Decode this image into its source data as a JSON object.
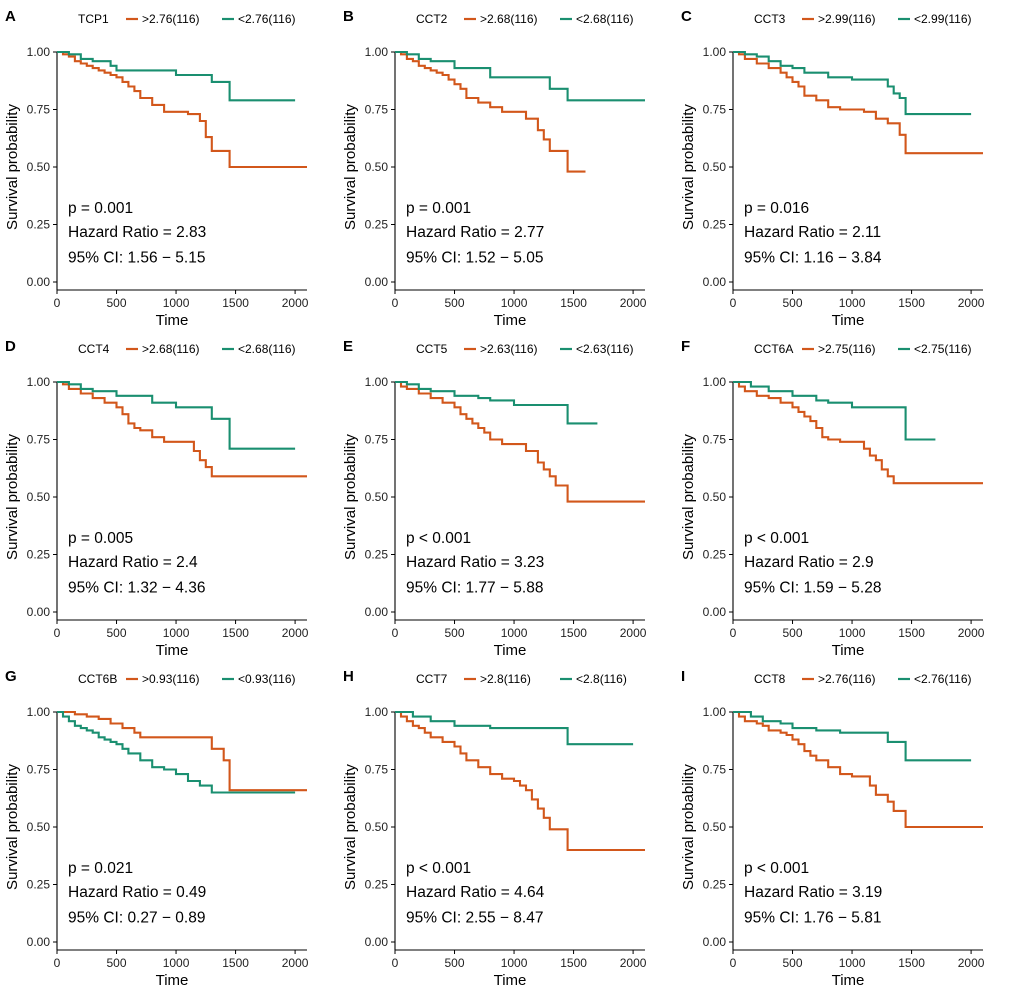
{
  "figure": {
    "series_colors": {
      "high": "#D2571B",
      "low": "#1A8F70"
    },
    "common": {
      "xlabel": "Time",
      "ylabel": "Survival probability",
      "x_ticks": [
        0,
        500,
        1000,
        1500,
        2000
      ],
      "y_ticks": [
        "0.00",
        "0.25",
        "0.50",
        "0.75",
        "1.00"
      ],
      "xlim": [
        0,
        2100
      ],
      "ylim": [
        0,
        1
      ]
    }
  },
  "chart_data": [
    {
      "panel": "A",
      "type": "line",
      "gene": "TCP1",
      "title": "",
      "xlabel": "Time",
      "ylabel": "Survival probability",
      "legend": {
        "high": ">2.76(116)",
        "low": "<2.76(116)"
      },
      "stats": {
        "p": "p = 0.001",
        "hr": "Hazard Ratio = 2.83",
        "ci": "95% CI: 1.56 − 5.15"
      },
      "series": [
        {
          "name": ">2.76(116)",
          "key": "high",
          "x": [
            0,
            50,
            100,
            150,
            200,
            250,
            300,
            350,
            400,
            450,
            500,
            550,
            600,
            650,
            700,
            800,
            900,
            1000,
            1100,
            1200,
            1250,
            1300,
            1350,
            1450,
            2100
          ],
          "y": [
            1.0,
            0.99,
            0.98,
            0.96,
            0.95,
            0.94,
            0.93,
            0.92,
            0.91,
            0.9,
            0.89,
            0.87,
            0.85,
            0.83,
            0.8,
            0.77,
            0.74,
            0.74,
            0.73,
            0.7,
            0.63,
            0.57,
            0.57,
            0.5,
            0.5
          ]
        },
        {
          "name": "<2.76(116)",
          "key": "low",
          "x": [
            0,
            100,
            200,
            300,
            450,
            500,
            800,
            1000,
            1300,
            1450,
            2000
          ],
          "y": [
            1.0,
            0.99,
            0.97,
            0.96,
            0.94,
            0.92,
            0.92,
            0.9,
            0.87,
            0.79,
            0.79
          ]
        }
      ]
    },
    {
      "panel": "B",
      "type": "line",
      "gene": "CCT2",
      "title": "",
      "xlabel": "Time",
      "ylabel": "Survival probability",
      "legend": {
        "high": ">2.68(116)",
        "low": "<2.68(116)"
      },
      "stats": {
        "p": "p = 0.001",
        "hr": "Hazard Ratio = 2.77",
        "ci": "95% CI: 1.52 − 5.05"
      },
      "series": [
        {
          "name": ">2.68(116)",
          "key": "high",
          "x": [
            0,
            50,
            100,
            150,
            200,
            250,
            300,
            350,
            400,
            450,
            500,
            550,
            600,
            700,
            800,
            900,
            1000,
            1100,
            1200,
            1250,
            1300,
            1350,
            1450,
            1600
          ],
          "y": [
            1.0,
            0.99,
            0.97,
            0.96,
            0.94,
            0.93,
            0.92,
            0.91,
            0.9,
            0.88,
            0.86,
            0.84,
            0.8,
            0.78,
            0.76,
            0.74,
            0.74,
            0.71,
            0.66,
            0.62,
            0.57,
            0.57,
            0.48,
            0.48
          ]
        },
        {
          "name": "<2.68(116)",
          "key": "low",
          "x": [
            0,
            100,
            200,
            300,
            500,
            800,
            1000,
            1200,
            1300,
            1450,
            2100
          ],
          "y": [
            1.0,
            0.99,
            0.97,
            0.96,
            0.93,
            0.89,
            0.89,
            0.89,
            0.84,
            0.79,
            0.79
          ]
        }
      ]
    },
    {
      "panel": "C",
      "type": "line",
      "gene": "CCT3",
      "title": "",
      "xlabel": "Time",
      "ylabel": "Survival probability",
      "legend": {
        "high": ">2.99(116)",
        "low": "<2.99(116)"
      },
      "stats": {
        "p": "p = 0.016",
        "hr": "Hazard Ratio = 2.11",
        "ci": "95% CI: 1.16 − 3.84"
      },
      "series": [
        {
          "name": ">2.99(116)",
          "key": "high",
          "x": [
            0,
            50,
            100,
            200,
            300,
            400,
            450,
            500,
            550,
            600,
            700,
            800,
            900,
            1000,
            1100,
            1200,
            1300,
            1400,
            1450,
            2100
          ],
          "y": [
            1.0,
            0.99,
            0.97,
            0.95,
            0.93,
            0.91,
            0.89,
            0.87,
            0.85,
            0.81,
            0.79,
            0.76,
            0.75,
            0.75,
            0.74,
            0.71,
            0.69,
            0.64,
            0.56,
            0.56
          ]
        },
        {
          "name": "<2.99(116)",
          "key": "low",
          "x": [
            0,
            100,
            200,
            300,
            400,
            500,
            600,
            800,
            1000,
            1300,
            1350,
            1400,
            1450,
            2000
          ],
          "y": [
            1.0,
            0.99,
            0.98,
            0.96,
            0.94,
            0.93,
            0.91,
            0.89,
            0.88,
            0.85,
            0.82,
            0.8,
            0.73,
            0.73
          ]
        }
      ]
    },
    {
      "panel": "D",
      "type": "line",
      "gene": "CCT4",
      "title": "",
      "xlabel": "Time",
      "ylabel": "Survival probability",
      "legend": {
        "high": ">2.68(116)",
        "low": "<2.68(116)"
      },
      "stats": {
        "p": "p = 0.005",
        "hr": "Hazard Ratio = 2.4",
        "ci": "95% CI: 1.32 − 4.36"
      },
      "series": [
        {
          "name": ">2.68(116)",
          "key": "high",
          "x": [
            0,
            50,
            100,
            200,
            300,
            400,
            500,
            550,
            600,
            650,
            700,
            800,
            900,
            1000,
            1100,
            1150,
            1200,
            1250,
            1300,
            1350,
            2100
          ],
          "y": [
            1.0,
            0.99,
            0.97,
            0.95,
            0.93,
            0.91,
            0.89,
            0.86,
            0.82,
            0.8,
            0.79,
            0.76,
            0.74,
            0.74,
            0.74,
            0.7,
            0.66,
            0.63,
            0.59,
            0.59,
            0.59
          ]
        },
        {
          "name": "<2.68(116)",
          "key": "low",
          "x": [
            0,
            100,
            200,
            300,
            500,
            800,
            1000,
            1200,
            1300,
            1450,
            2000
          ],
          "y": [
            1.0,
            0.99,
            0.97,
            0.96,
            0.94,
            0.91,
            0.89,
            0.89,
            0.84,
            0.71,
            0.71
          ]
        }
      ]
    },
    {
      "panel": "E",
      "type": "line",
      "gene": "CCT5",
      "title": "",
      "xlabel": "Time",
      "ylabel": "Survival probability",
      "legend": {
        "high": ">2.63(116)",
        "low": "<2.63(116)"
      },
      "stats": {
        "p": "p < 0.001",
        "hr": "Hazard Ratio = 3.23",
        "ci": "95% CI: 1.77 − 5.88"
      },
      "series": [
        {
          "name": ">2.63(116)",
          "key": "high",
          "x": [
            0,
            50,
            100,
            200,
            300,
            400,
            500,
            550,
            600,
            650,
            700,
            750,
            800,
            900,
            1000,
            1100,
            1200,
            1250,
            1300,
            1350,
            1400,
            1450,
            2100
          ],
          "y": [
            1.0,
            0.98,
            0.97,
            0.95,
            0.93,
            0.91,
            0.89,
            0.86,
            0.84,
            0.82,
            0.8,
            0.78,
            0.75,
            0.73,
            0.73,
            0.7,
            0.65,
            0.62,
            0.59,
            0.55,
            0.55,
            0.48,
            0.48
          ]
        },
        {
          "name": "<2.63(116)",
          "key": "low",
          "x": [
            0,
            100,
            200,
            300,
            500,
            700,
            800,
            1000,
            1200,
            1450,
            1700
          ],
          "y": [
            1.0,
            0.99,
            0.97,
            0.96,
            0.94,
            0.93,
            0.92,
            0.9,
            0.9,
            0.82,
            0.82
          ]
        }
      ]
    },
    {
      "panel": "F",
      "type": "line",
      "gene": "CCT6A",
      "title": "",
      "xlabel": "Time",
      "ylabel": "Survival probability",
      "legend": {
        "high": ">2.75(116)",
        "low": "<2.75(116)"
      },
      "stats": {
        "p": "p < 0.001",
        "hr": "Hazard Ratio = 2.9",
        "ci": "95% CI: 1.59 − 5.28"
      },
      "series": [
        {
          "name": ">2.75(116)",
          "key": "high",
          "x": [
            0,
            50,
            100,
            200,
            300,
            400,
            500,
            550,
            600,
            650,
            700,
            750,
            800,
            900,
            1000,
            1100,
            1150,
            1200,
            1250,
            1300,
            1350,
            2100
          ],
          "y": [
            1.0,
            0.98,
            0.96,
            0.94,
            0.93,
            0.91,
            0.89,
            0.87,
            0.85,
            0.83,
            0.8,
            0.76,
            0.75,
            0.74,
            0.74,
            0.71,
            0.68,
            0.66,
            0.62,
            0.59,
            0.56,
            0.56
          ]
        },
        {
          "name": "<2.75(116)",
          "key": "low",
          "x": [
            0,
            150,
            300,
            500,
            700,
            800,
            1000,
            1200,
            1450,
            1700
          ],
          "y": [
            1.0,
            0.98,
            0.96,
            0.94,
            0.92,
            0.91,
            0.89,
            0.89,
            0.75,
            0.75
          ]
        }
      ]
    },
    {
      "panel": "G",
      "type": "line",
      "gene": "CCT6B",
      "title": "",
      "xlabel": "Time",
      "ylabel": "Survival probability",
      "legend": {
        "high": ">0.93(116)",
        "low": "<0.93(116)"
      },
      "stats": {
        "p": "p = 0.021",
        "hr": "Hazard Ratio = 0.49",
        "ci": "95% CI: 0.27 − 0.89"
      },
      "series": [
        {
          "name": ">0.93(116)",
          "key": "high",
          "x": [
            0,
            150,
            250,
            350,
            450,
            550,
            650,
            700,
            1300,
            1400,
            1450,
            2100
          ],
          "y": [
            1.0,
            0.99,
            0.98,
            0.97,
            0.95,
            0.93,
            0.91,
            0.89,
            0.84,
            0.79,
            0.66,
            0.66
          ]
        },
        {
          "name": "<0.93(116)",
          "key": "low",
          "x": [
            0,
            50,
            100,
            150,
            200,
            250,
            300,
            350,
            400,
            450,
            500,
            550,
            600,
            700,
            800,
            900,
            1000,
            1100,
            1200,
            1300,
            2000
          ],
          "y": [
            1.0,
            0.98,
            0.96,
            0.94,
            0.93,
            0.92,
            0.91,
            0.89,
            0.88,
            0.87,
            0.86,
            0.84,
            0.82,
            0.79,
            0.76,
            0.75,
            0.73,
            0.7,
            0.68,
            0.65,
            0.65
          ]
        }
      ]
    },
    {
      "panel": "H",
      "type": "line",
      "gene": "CCT7",
      "title": "",
      "xlabel": "Time",
      "ylabel": "Survival probability",
      "legend": {
        "high": ">2.8(116)",
        "low": "<2.8(116)"
      },
      "stats": {
        "p": "p < 0.001",
        "hr": "Hazard Ratio = 4.64",
        "ci": "95% CI: 2.55 − 8.47"
      },
      "series": [
        {
          "name": ">2.8(116)",
          "key": "high",
          "x": [
            0,
            50,
            100,
            150,
            200,
            250,
            300,
            400,
            500,
            550,
            600,
            700,
            800,
            900,
            1000,
            1050,
            1100,
            1150,
            1200,
            1250,
            1300,
            1350,
            1450,
            2100
          ],
          "y": [
            1.0,
            0.98,
            0.96,
            0.94,
            0.93,
            0.91,
            0.89,
            0.87,
            0.85,
            0.82,
            0.79,
            0.76,
            0.73,
            0.71,
            0.7,
            0.68,
            0.66,
            0.62,
            0.58,
            0.54,
            0.49,
            0.49,
            0.4,
            0.4
          ]
        },
        {
          "name": "<2.8(116)",
          "key": "low",
          "x": [
            0,
            150,
            300,
            500,
            800,
            1000,
            1200,
            1450,
            2000
          ],
          "y": [
            1.0,
            0.98,
            0.96,
            0.94,
            0.93,
            0.93,
            0.93,
            0.86,
            0.86
          ]
        }
      ]
    },
    {
      "panel": "I",
      "type": "line",
      "gene": "CCT8",
      "title": "",
      "xlabel": "Time",
      "ylabel": "Survival probability",
      "legend": {
        "high": ">2.76(116)",
        "low": "<2.76(116)"
      },
      "stats": {
        "p": "p < 0.001",
        "hr": "Hazard Ratio = 3.19",
        "ci": "95% CI: 1.76 − 5.81"
      },
      "series": [
        {
          "name": ">2.76(116)",
          "key": "high",
          "x": [
            0,
            50,
            100,
            200,
            250,
            300,
            400,
            450,
            500,
            550,
            600,
            650,
            700,
            800,
            900,
            1000,
            1100,
            1150,
            1200,
            1300,
            1350,
            1450,
            2100
          ],
          "y": [
            1.0,
            0.98,
            0.96,
            0.95,
            0.94,
            0.92,
            0.91,
            0.9,
            0.88,
            0.86,
            0.83,
            0.81,
            0.79,
            0.76,
            0.73,
            0.72,
            0.72,
            0.68,
            0.64,
            0.61,
            0.57,
            0.5,
            0.5
          ]
        },
        {
          "name": "<2.76(116)",
          "key": "low",
          "x": [
            0,
            150,
            250,
            400,
            500,
            700,
            900,
            1200,
            1300,
            1450,
            2000
          ],
          "y": [
            1.0,
            0.98,
            0.96,
            0.95,
            0.93,
            0.92,
            0.91,
            0.91,
            0.87,
            0.79,
            0.79
          ]
        }
      ]
    }
  ]
}
